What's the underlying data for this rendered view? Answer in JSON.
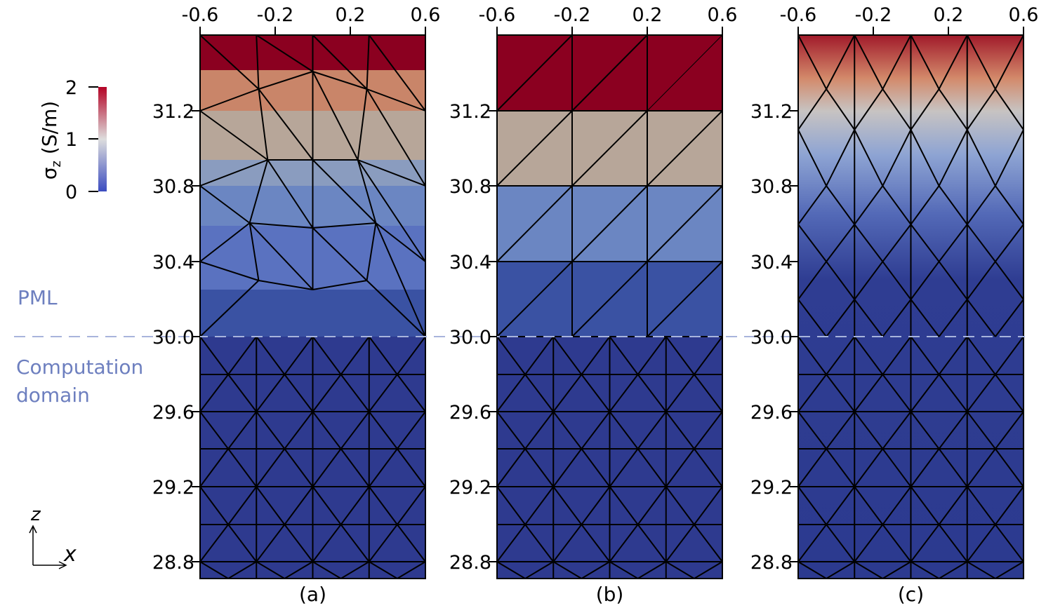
{
  "figure": {
    "x_ticks": [
      "-0.6",
      "-0.2",
      "0.2",
      "0.6"
    ],
    "z_ticks": [
      "31.2",
      "30.8",
      "30.4",
      "30.0",
      "29.6",
      "29.2",
      "28.8"
    ],
    "panel_labels": [
      "(a)",
      "(b)",
      "(c)"
    ],
    "pml_label": "PML",
    "computation_label_line1": "Computation",
    "computation_label_line2": "domain",
    "colorbar": {
      "label": "σ",
      "label_sub": "z",
      "label_unit": " (S/m)",
      "ticks": [
        "2",
        "1",
        "0"
      ],
      "min": 0,
      "max": 2,
      "colors": {
        "low": "#3b4cc0",
        "mid": "#dddddd",
        "high": "#b40426"
      }
    },
    "axes_icon": {
      "z": "z",
      "x": "x"
    },
    "colors": {
      "layer_top": "#8b0020",
      "layer_31": "#c98569",
      "layer_30_9": "#b7a699",
      "layer_30_7": "#8a9cbf",
      "layer_30_5": "#6b86c2",
      "layer_30_3": "#5a72c0",
      "layer_30_1": "#3a52a3",
      "domain": "#2e3a8f",
      "pml_line": "#a8b4dc",
      "side_text": "#6d7fbf"
    }
  },
  "chart_data": {
    "type": "heatmap",
    "title": "",
    "panels": [
      "(a)",
      "(b)",
      "(c)"
    ],
    "x_range": [
      -0.6,
      0.6
    ],
    "z_range": [
      28.7,
      31.6
    ],
    "x_ticks": [
      -0.6,
      -0.2,
      0.2,
      0.6
    ],
    "z_ticks": [
      31.2,
      30.8,
      30.4,
      30.0,
      29.6,
      29.2,
      28.8
    ],
    "pml_interface_z": 30.0,
    "colorbar": {
      "variable": "σ_z",
      "unit": "S/m",
      "range": [
        0,
        2
      ],
      "ticks": [
        0,
        1,
        2
      ]
    },
    "panel_b_layers": [
      {
        "z_range": [
          31.2,
          31.6
        ],
        "sigma_z": 2.0
      },
      {
        "z_range": [
          30.8,
          31.2
        ],
        "sigma_z": 1.2
      },
      {
        "z_range": [
          30.4,
          30.8
        ],
        "sigma_z": 0.5
      },
      {
        "z_range": [
          30.0,
          30.4
        ],
        "sigma_z": 0.2
      },
      {
        "z_range": [
          28.7,
          30.0
        ],
        "sigma_z": 0.0
      }
    ]
  }
}
